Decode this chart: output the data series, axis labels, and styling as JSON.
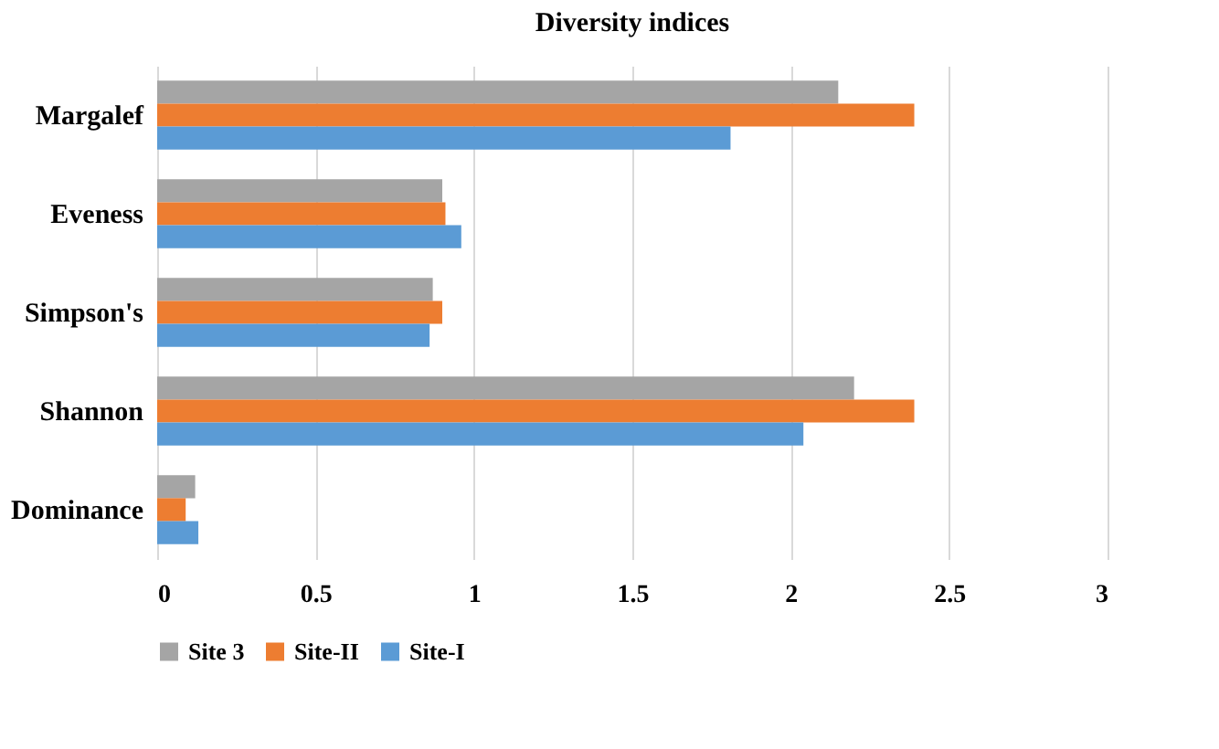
{
  "chart_data": {
    "type": "bar",
    "orientation": "horizontal",
    "title": "Diversity indices",
    "categories": [
      "Margalef",
      "Eveness",
      "Simpson's",
      "Shannon",
      "Dominance"
    ],
    "series": [
      {
        "name": "Site 3",
        "color": "#a5a5a5",
        "values": [
          2.15,
          0.9,
          0.87,
          2.2,
          0.12
        ]
      },
      {
        "name": "Site-II",
        "color": "#ed7d31",
        "values": [
          2.39,
          0.91,
          0.9,
          2.39,
          0.09
        ]
      },
      {
        "name": "Site-I",
        "color": "#5b9bd5",
        "values": [
          1.81,
          0.96,
          0.86,
          2.04,
          0.13
        ]
      }
    ],
    "xlim": [
      0,
      3
    ],
    "xticks": [
      0,
      0.5,
      1,
      1.5,
      2,
      2.5,
      3
    ],
    "grid": "x",
    "legend": "bottom"
  }
}
